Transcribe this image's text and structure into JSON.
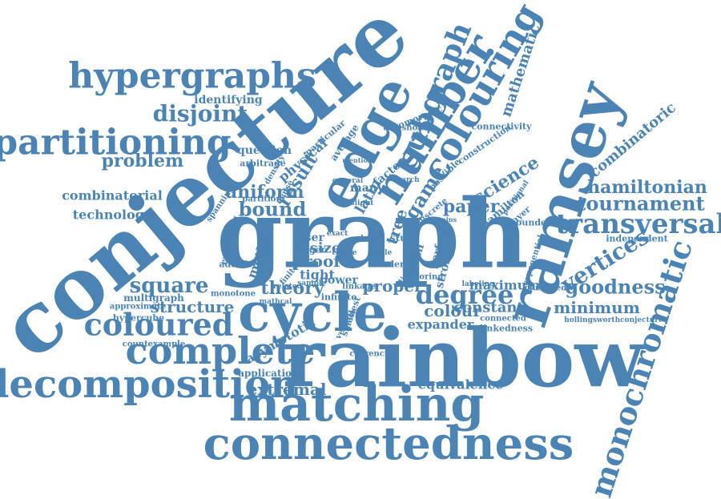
{
  "color": "#4a83b4",
  "words": [
    "conjecture",
    "graph",
    "rainbow",
    "ramsey",
    "edge",
    "matching",
    "connectedness",
    "cycle",
    "number",
    "colouring",
    "complete",
    "decomposition",
    "coloured",
    "subgraph",
    "partitioning",
    "hypergraphs",
    "monochromatic",
    "transversal",
    "degree",
    "tournament",
    "hamiltonian",
    "vertices",
    "square",
    "goodness",
    "disjoint",
    "problem",
    "minimum",
    "extremal",
    "mathematic",
    "combinatoric",
    "science",
    "game",
    "paper",
    "bound",
    "uniform",
    "structure",
    "theory",
    "proof",
    "combinatorial",
    "technology",
    "question",
    "result",
    "equivalence",
    "constant",
    "colour",
    "tree",
    "proper",
    "size",
    "expander",
    "identifying",
    "asymptotic",
    "latin",
    "physical",
    "multigraph",
    "method",
    "tight",
    "ryser",
    "power",
    "maximum",
    "connectivity",
    "hypercube",
    "isomorphic",
    "infinite",
    "application",
    "countexample",
    "strong",
    "perfect",
    "additive",
    "approximate",
    "bounded",
    "independent",
    "clustered",
    "threshold",
    "construction",
    "player",
    "hamilton",
    "many",
    "factor",
    "monotone",
    "spanning",
    "arbitrage",
    "linkedness",
    "currencies",
    "path",
    "order",
    "labelling",
    "exponential",
    "connected",
    "hollingsworthconjecture",
    "average",
    "particular",
    "possible",
    "dense",
    "density",
    "berger",
    "discrete",
    "embedding",
    "cubic",
    "study",
    "smallest",
    "linkage",
    "coloring",
    "labeling",
    "related",
    "version",
    "positional",
    "contains",
    "dirac",
    "finite",
    "mathcal",
    "search",
    "mention",
    "exact",
    "partition",
    "clique",
    "sample",
    "stable",
    "general",
    "slight"
  ]
}
